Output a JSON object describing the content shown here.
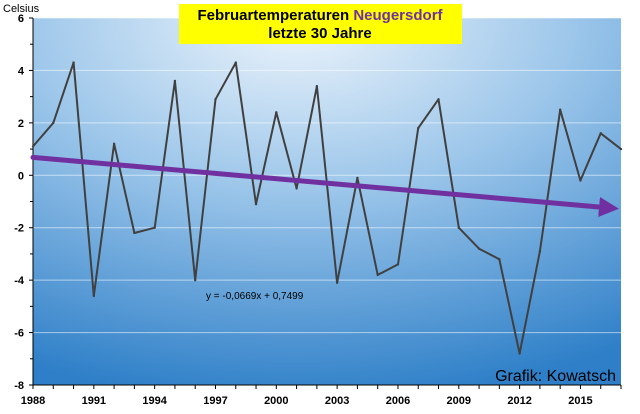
{
  "chart_data": {
    "type": "line",
    "title_line1": "Februartemperaturen",
    "title_highlight": "Neugersdorf",
    "title_line2": "letzte 30 Jahre",
    "ylabel": "Celsius",
    "xlabel": "",
    "credit": "Grafik: Kowatsch",
    "trend_equation": "y = -0,0669x + 0,7499",
    "xlim": [
      1988,
      2017
    ],
    "ylim": [
      -8,
      6
    ],
    "x_ticks": [
      "1988",
      "1991",
      "1994",
      "1997",
      "2000",
      "2003",
      "2006",
      "2009",
      "2012",
      "2015"
    ],
    "y_ticks": [
      "6",
      "4",
      "2",
      "0",
      "-2",
      "-4",
      "-6",
      "-8"
    ],
    "grid": true,
    "legend": "none",
    "series": [
      {
        "x": [
          1988,
          1989,
          1990,
          1991,
          1992,
          1993,
          1994,
          1995,
          1996,
          1997,
          1998,
          1999,
          2000,
          2001,
          2002,
          2003,
          2004,
          2005,
          2006,
          2007,
          2008,
          2009,
          2010,
          2011,
          2012,
          2013,
          2014,
          2015,
          2016,
          2017
        ],
        "values": [
          1.1,
          2.0,
          4.3,
          -4.6,
          1.2,
          -2.2,
          -2.0,
          3.6,
          -4.0,
          2.9,
          4.3,
          -1.1,
          2.4,
          -0.5,
          3.4,
          -4.1,
          -0.1,
          -3.8,
          -3.4,
          1.8,
          2.9,
          -2.0,
          -2.8,
          -3.2,
          -6.8,
          -2.9,
          2.5,
          -0.2,
          1.6,
          1.0
        ]
      }
    ],
    "trend": {
      "slope": -0.0669,
      "intercept": 0.7499
    },
    "colors": {
      "line": "#404040",
      "trend": "#7030a0",
      "title_bg": "#ffff00",
      "title_highlight": "#7030a0",
      "plot_bg_light": "#eef5fc",
      "plot_bg_dark": "#2e7fc8"
    }
  }
}
